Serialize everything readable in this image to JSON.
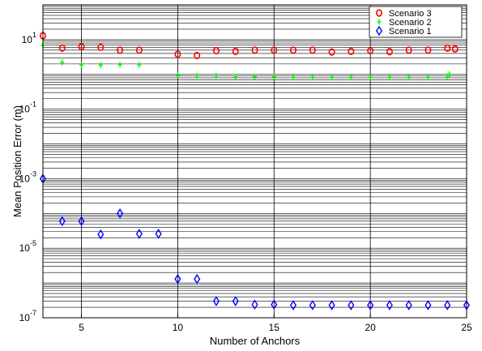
{
  "chart_data": {
    "type": "scatter",
    "title": "",
    "xlabel": "Number of Anchors",
    "ylabel": "Mean Position Error (m)",
    "x_scale": "linear",
    "y_scale": "log",
    "xlim": [
      3,
      25
    ],
    "ylim": [
      1e-07,
      100
    ],
    "x_ticks": [
      5,
      10,
      15,
      20,
      25
    ],
    "x_tick_labels": [
      "5",
      "10",
      "15",
      "20",
      "25"
    ],
    "y_ticks": [
      {
        "value": 1e-07,
        "base": "10",
        "exp": "-7"
      },
      {
        "value": 1e-05,
        "base": "10",
        "exp": "-5"
      },
      {
        "value": 0.001,
        "base": "10",
        "exp": "-3"
      },
      {
        "value": 0.1,
        "base": "10",
        "exp": "-1"
      },
      {
        "value": 10,
        "base": "10",
        "exp": "1"
      }
    ],
    "grid": true,
    "legend_position": "top-right",
    "series": [
      {
        "name": "Scenario 3",
        "color": "#ff0000",
        "marker": "circle",
        "points": [
          [
            3,
            13
          ],
          [
            4,
            5.7
          ],
          [
            5,
            6.3
          ],
          [
            6,
            6.0
          ],
          [
            7,
            5.0
          ],
          [
            8,
            5.0
          ],
          [
            10,
            3.8
          ],
          [
            11,
            3.5
          ],
          [
            12,
            4.8
          ],
          [
            13,
            4.6
          ],
          [
            14,
            5.0
          ],
          [
            15,
            5.0
          ],
          [
            16,
            5.0
          ],
          [
            17,
            5.0
          ],
          [
            18,
            4.4
          ],
          [
            19,
            4.6
          ],
          [
            20,
            4.8
          ],
          [
            21,
            4.5
          ],
          [
            22,
            5.0
          ],
          [
            23,
            5.0
          ],
          [
            24,
            5.7
          ],
          [
            24.4,
            5.4
          ]
        ]
      },
      {
        "name": "Scenario 2",
        "color": "#00ff00",
        "marker": "plus",
        "points": [
          [
            3,
            6.9
          ],
          [
            4,
            2.2
          ],
          [
            5,
            1.85
          ],
          [
            6,
            1.85
          ],
          [
            7,
            1.9
          ],
          [
            8,
            1.9
          ],
          [
            10,
            0.95
          ],
          [
            11,
            0.9
          ],
          [
            12,
            0.9
          ],
          [
            13,
            0.87
          ],
          [
            14,
            0.85
          ],
          [
            15,
            0.85
          ],
          [
            16,
            0.82
          ],
          [
            17,
            0.82
          ],
          [
            18,
            0.82
          ],
          [
            19,
            0.82
          ],
          [
            20,
            0.82
          ],
          [
            21,
            0.82
          ],
          [
            22,
            0.82
          ],
          [
            23,
            0.82
          ],
          [
            24,
            0.88
          ],
          [
            24.1,
            1.0
          ]
        ]
      },
      {
        "name": "Scenario 1",
        "color": "#0000ff",
        "marker": "diamond",
        "points": [
          [
            3,
            0.001
          ],
          [
            4,
            6e-05
          ],
          [
            5,
            6e-05
          ],
          [
            6,
            2.5e-05
          ],
          [
            7,
            0.0001
          ],
          [
            8,
            2.6e-05
          ],
          [
            9,
            2.6e-05
          ],
          [
            10,
            1.3e-06
          ],
          [
            11,
            1.3e-06
          ],
          [
            12,
            3e-07
          ],
          [
            13,
            3e-07
          ],
          [
            14,
            2.4e-07
          ],
          [
            15,
            2.4e-07
          ],
          [
            16,
            2.3e-07
          ],
          [
            17,
            2.3e-07
          ],
          [
            18,
            2.3e-07
          ],
          [
            19,
            2.3e-07
          ],
          [
            20,
            2.3e-07
          ],
          [
            21,
            2.3e-07
          ],
          [
            22,
            2.3e-07
          ],
          [
            23,
            2.3e-07
          ],
          [
            24,
            2.3e-07
          ],
          [
            25,
            2.3e-07
          ]
        ]
      }
    ]
  }
}
